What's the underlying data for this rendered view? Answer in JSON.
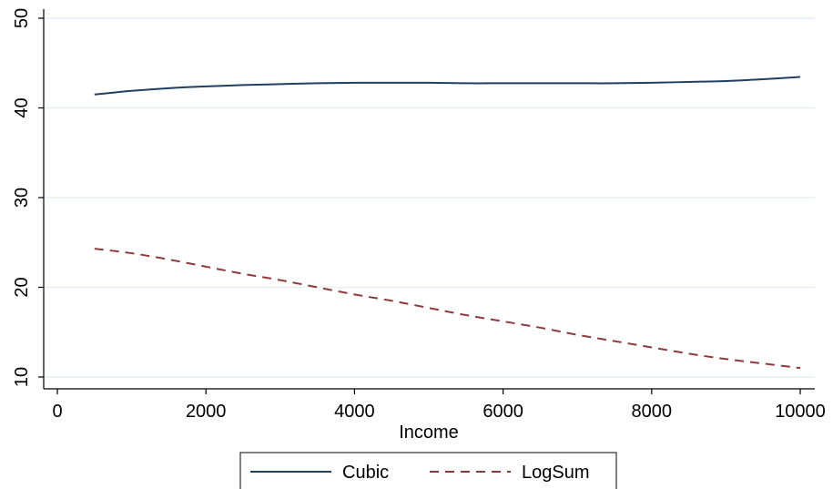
{
  "chart_data": {
    "type": "line",
    "xlabel": "Income",
    "ylabel": "",
    "xlim": [
      0,
      10000
    ],
    "ylim": [
      10,
      50
    ],
    "x_ticks": [
      0,
      2000,
      4000,
      6000,
      8000,
      10000
    ],
    "y_ticks": [
      10,
      20,
      30,
      40,
      50
    ],
    "grid": "horizontal",
    "legend_position": "bottom",
    "series": [
      {
        "name": "Cubic",
        "color": "#1f3f63",
        "style": "solid",
        "x": [
          500,
          1000,
          1500,
          2000,
          2500,
          3000,
          3500,
          4000,
          4500,
          5000,
          5500,
          6000,
          6500,
          7000,
          7500,
          8000,
          8500,
          9000,
          9500,
          10000
        ],
        "y": [
          41.5,
          41.9,
          42.2,
          42.4,
          42.55,
          42.65,
          42.75,
          42.8,
          42.8,
          42.8,
          42.75,
          42.75,
          42.75,
          42.75,
          42.75,
          42.8,
          42.9,
          43.0,
          43.2,
          43.45
        ]
      },
      {
        "name": "LogSum",
        "color": "#8f3a3a",
        "style": "dashed",
        "x": [
          500,
          1000,
          1500,
          2000,
          2500,
          3000,
          3500,
          4000,
          4500,
          5000,
          5500,
          6000,
          6500,
          7000,
          7500,
          8000,
          8500,
          9000,
          9500,
          10000
        ],
        "y": [
          24.3,
          23.8,
          23.1,
          22.3,
          21.5,
          20.8,
          20.0,
          19.2,
          18.5,
          17.7,
          16.9,
          16.2,
          15.5,
          14.7,
          14.0,
          13.3,
          12.6,
          12.0,
          11.5,
          11.0
        ]
      }
    ]
  }
}
